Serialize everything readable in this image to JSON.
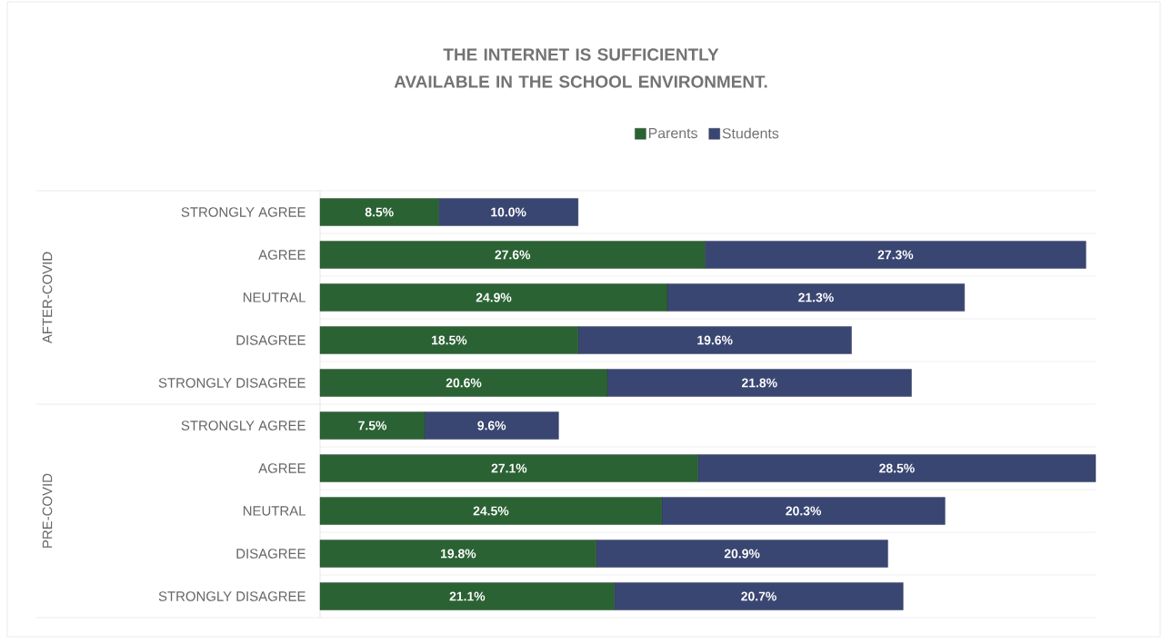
{
  "chart_data": {
    "type": "bar",
    "orientation": "horizontal",
    "stacked": true,
    "title": "THE INTERNET IS SUFFICIENTLY AVAILABLE IN THE SCHOOL ENVIRONMENT.",
    "categories": [
      "STRONGLY AGREE",
      "AGREE",
      "NEUTRAL",
      "DISAGREE",
      "STRONGLY DISAGREE",
      "STRONGLY AGREE",
      "AGREE",
      "NEUTRAL",
      "DISAGREE",
      "STRONGLY DISAGREE"
    ],
    "series": [
      {
        "name": "Parents",
        "color": "#2b6234",
        "values": [
          8.5,
          27.6,
          24.9,
          18.5,
          20.6,
          7.5,
          27.1,
          24.5,
          19.8,
          21.1
        ],
        "value_labels": [
          "8.5%",
          "27.6%",
          "24.9%",
          "18.5%",
          "20.6%",
          "7.5%",
          "27.1%",
          "24.5%",
          "19.8%",
          "21.1%"
        ]
      },
      {
        "name": "Students",
        "color": "#3a4672",
        "values": [
          10.0,
          27.3,
          21.3,
          19.6,
          21.8,
          9.6,
          28.5,
          20.3,
          20.9,
          20.7
        ],
        "value_labels": [
          "10.0%",
          "27.3%",
          "21.3%",
          "19.6%",
          "21.8%",
          "9.6%",
          "28.5%",
          "20.3%",
          "20.9%",
          "20.7%"
        ]
      }
    ],
    "annotations": [
      "AFTER-COVID",
      "PRE-COVID"
    ],
    "legend": "top",
    "grid": "y",
    "tick_labels": "y"
  }
}
